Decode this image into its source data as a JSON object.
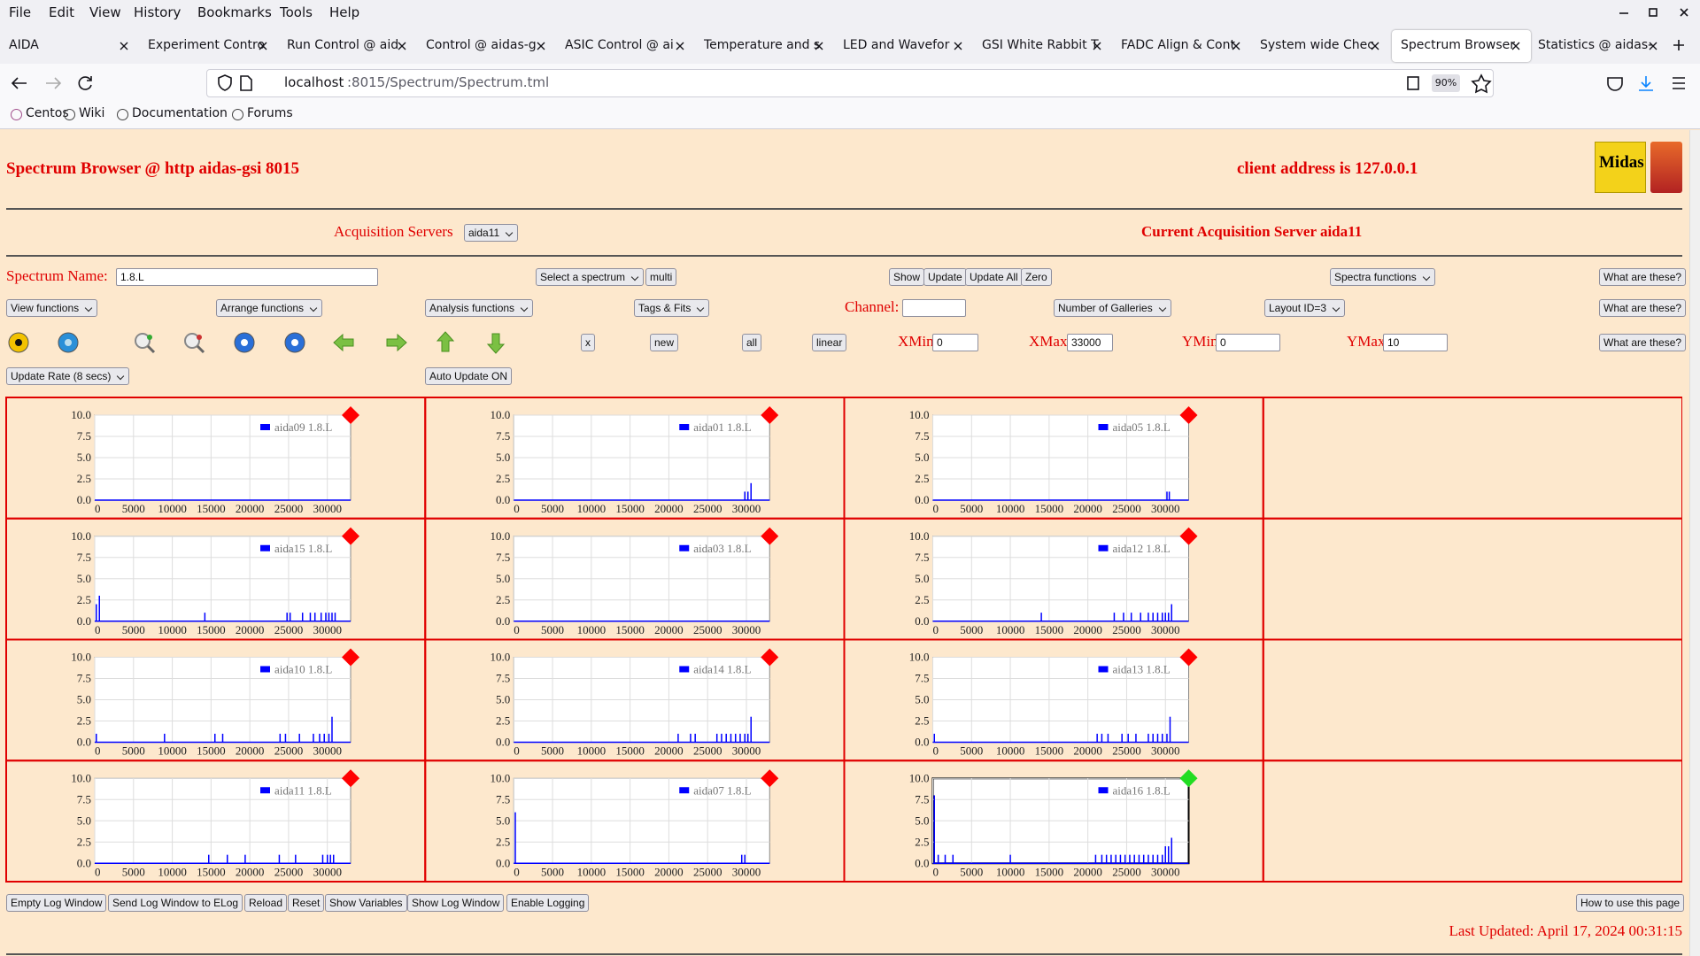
{
  "browser": {
    "menu": [
      "File",
      "Edit",
      "View",
      "History",
      "Bookmarks",
      "Tools",
      "Help"
    ],
    "tabs": [
      "AIDA",
      "Experiment Contro",
      "Run Control @ aid",
      "Control @ aidas-g",
      "ASIC Control @ ai",
      "Temperature and s",
      "LED and Wavefor",
      "GSI White Rabbit T",
      "FADC Align & Cont",
      "System wide Chec",
      "Spectrum Browser",
      "Statistics @ aidas-"
    ],
    "active_tab": 10,
    "url_host": "localhost",
    "url_rest": ":8015/Spectrum/Spectrum.tml",
    "zoom": "90%",
    "bookmarks": [
      "Centos",
      "Wiki",
      "Documentation",
      "Forums"
    ]
  },
  "page": {
    "title": "Spectrum Browser @ http aidas-gsi 8015",
    "client_address": "client address is 127.0.0.1",
    "logo_text": "Midas",
    "acquisition_label": "Acquisition Servers",
    "acquisition_server": "aida11",
    "current_server": "Current Acquisition Server aida11",
    "rows": [
      [
        {
          "text": "Spectrum Name:",
          "kind": "label"
        },
        {
          "text": "1.8.L",
          "kind": "input"
        },
        {
          "text": "Select a spectrum",
          "kind": "select"
        },
        {
          "text": "multi",
          "kind": "button"
        },
        {
          "text": "Show",
          "kind": "button"
        },
        {
          "text": "Update",
          "kind": "button"
        },
        {
          "text": "Update All",
          "kind": "button"
        },
        {
          "text": "Zero",
          "kind": "button"
        },
        {
          "text": "Spectra functions",
          "kind": "select"
        },
        {
          "text": "What are these?",
          "kind": "button"
        }
      ],
      [
        {
          "text": "View functions",
          "kind": "select"
        },
        {
          "text": "Arrange functions",
          "kind": "select"
        },
        {
          "text": "Analysis functions",
          "kind": "select"
        },
        {
          "text": "Tags & Fits",
          "kind": "select"
        },
        {
          "text": "Channel:",
          "kind": "label"
        },
        {
          "text": "Number of Galleries",
          "kind": "select"
        },
        {
          "text": "Layout ID=3",
          "kind": "select"
        },
        {
          "text": "What are these?",
          "kind": "button"
        }
      ],
      [
        {
          "text": "x",
          "kind": "button"
        },
        {
          "text": "new",
          "kind": "button"
        },
        {
          "text": "all",
          "kind": "button"
        },
        {
          "text": "linear",
          "kind": "button"
        },
        {
          "text": "XMin",
          "kind": "label"
        },
        {
          "text": "0",
          "kind": "input"
        },
        {
          "text": "XMax",
          "kind": "label"
        },
        {
          "text": "33000",
          "kind": "input"
        },
        {
          "text": "YMin",
          "kind": "label"
        },
        {
          "text": "0",
          "kind": "input"
        },
        {
          "text": "YMax",
          "kind": "label"
        },
        {
          "text": "10",
          "kind": "input"
        },
        {
          "text": "What are these?",
          "kind": "button"
        }
      ],
      [
        {
          "text": "Update Rate (8 secs)",
          "kind": "select"
        },
        {
          "text": "Auto Update ON",
          "kind": "button"
        }
      ]
    ],
    "footer_buttons": [
      "Empty Log Window",
      "Send Log Window to ELog",
      "Reload",
      "Reset",
      "Show Variables",
      "Show Log Window",
      "Enable Logging",
      "How to use this page"
    ],
    "last_updated": "Last Updated: April 17, 2024 00:31:15"
  },
  "chart_data": [
    {
      "type": "bar",
      "status_color": "#ff0000",
      "selected": false,
      "x": [],
      "series": [
        {
          "name": "aida09 1.8.L",
          "color": "#0000ff",
          "values": []
        }
      ],
      "xlim": [
        0,
        33000
      ],
      "ylim": [
        0,
        10
      ],
      "xticks": [
        0,
        5000,
        10000,
        15000,
        20000,
        25000,
        30000
      ],
      "yticks": [
        {
          "value": 0,
          "label": "0.0"
        },
        2.5,
        {
          "value": 5,
          "label": "5.0"
        },
        7.5,
        {
          "value": 10,
          "label": "10.0"
        }
      ],
      "grid": true
    },
    {
      "type": "bar",
      "status_color": "#ff0000",
      "selected": false,
      "x": [
        29800,
        30200,
        30600
      ],
      "series": [
        {
          "name": "aida01 1.8.L",
          "color": "#0000ff",
          "values": [
            1,
            1,
            2
          ]
        }
      ],
      "xlim": [
        0,
        33000
      ],
      "ylim": [
        0,
        10
      ],
      "xticks": [
        0,
        5000,
        10000,
        15000,
        20000,
        25000,
        30000
      ],
      "yticks": [
        {
          "value": 0,
          "label": "0.0"
        },
        2.5,
        {
          "value": 5,
          "label": "5.0"
        },
        7.5,
        {
          "value": 10,
          "label": "10.0"
        }
      ],
      "grid": true
    },
    {
      "type": "bar",
      "status_color": "#ff0000",
      "selected": false,
      "x": [
        30200,
        30500
      ],
      "series": [
        {
          "name": "aida05 1.8.L",
          "color": "#0000ff",
          "values": [
            1,
            1
          ]
        }
      ],
      "xlim": [
        0,
        33000
      ],
      "ylim": [
        0,
        10
      ],
      "xticks": [
        0,
        5000,
        10000,
        15000,
        20000,
        25000,
        30000
      ],
      "yticks": [
        {
          "value": 0,
          "label": "0.0"
        },
        2.5,
        {
          "value": 5,
          "label": "5.0"
        },
        7.5,
        {
          "value": 10,
          "label": "10.0"
        }
      ],
      "grid": true
    },
    {
      "type": "bar",
      "status_color": "#ff0000",
      "selected": false,
      "x": [
        200,
        600,
        14200,
        24800,
        25200,
        26800,
        27800,
        28400,
        29200,
        29800,
        30200,
        30600,
        31000
      ],
      "series": [
        {
          "name": "aida15 1.8.L",
          "color": "#0000ff",
          "values": [
            2,
            3,
            1,
            1,
            1,
            1,
            1,
            1,
            1,
            1,
            1,
            1,
            1
          ]
        }
      ],
      "xlim": [
        0,
        33000
      ],
      "ylim": [
        0,
        10
      ],
      "xticks": [
        0,
        5000,
        10000,
        15000,
        20000,
        25000,
        30000
      ],
      "yticks": [
        {
          "value": 0,
          "label": "0.0"
        },
        2.5,
        {
          "value": 5,
          "label": "5.0"
        },
        7.5,
        {
          "value": 10,
          "label": "10.0"
        }
      ],
      "grid": true
    },
    {
      "type": "bar",
      "status_color": "#ff0000",
      "selected": false,
      "x": [],
      "series": [
        {
          "name": "aida03 1.8.L",
          "color": "#0000ff",
          "values": []
        }
      ],
      "xlim": [
        0,
        33000
      ],
      "ylim": [
        0,
        10
      ],
      "xticks": [
        0,
        5000,
        10000,
        15000,
        20000,
        25000,
        30000
      ],
      "yticks": [
        {
          "value": 0,
          "label": "0.0"
        },
        2.5,
        {
          "value": 5,
          "label": "5.0"
        },
        7.5,
        {
          "value": 10,
          "label": "10.0"
        }
      ],
      "grid": true
    },
    {
      "type": "bar",
      "status_color": "#ff0000",
      "selected": false,
      "x": [
        14000,
        23400,
        24600,
        25600,
        26800,
        27800,
        28400,
        29000,
        29600,
        30000,
        30400,
        30800
      ],
      "series": [
        {
          "name": "aida12 1.8.L",
          "color": "#0000ff",
          "values": [
            1,
            1,
            1,
            1,
            1,
            1,
            1,
            1,
            1,
            1,
            1,
            2
          ]
        }
      ],
      "xlim": [
        0,
        33000
      ],
      "ylim": [
        0,
        10
      ],
      "xticks": [
        0,
        5000,
        10000,
        15000,
        20000,
        25000,
        30000
      ],
      "yticks": [
        {
          "value": 0,
          "label": "0.0"
        },
        2.5,
        {
          "value": 5,
          "label": "5.0"
        },
        7.5,
        {
          "value": 10,
          "label": "10.0"
        }
      ],
      "grid": true
    },
    {
      "type": "bar",
      "status_color": "#ff0000",
      "selected": false,
      "x": [
        200,
        9000,
        15500,
        16500,
        23900,
        24600,
        26400,
        28200,
        29000,
        29600,
        30200,
        30600
      ],
      "series": [
        {
          "name": "aida10 1.8.L",
          "color": "#0000ff",
          "values": [
            1,
            1,
            1,
            1,
            1,
            1,
            1,
            1,
            1,
            1,
            1,
            3
          ]
        }
      ],
      "xlim": [
        0,
        33000
      ],
      "ylim": [
        0,
        10
      ],
      "xticks": [
        0,
        5000,
        10000,
        15000,
        20000,
        25000,
        30000
      ],
      "yticks": [
        {
          "value": 0,
          "label": "0.0"
        },
        2.5,
        {
          "value": 5,
          "label": "5.0"
        },
        7.5,
        {
          "value": 10,
          "label": "10.0"
        }
      ],
      "grid": true
    },
    {
      "type": "bar",
      "status_color": "#ff0000",
      "selected": false,
      "x": [
        21200,
        22800,
        23400,
        26200,
        26800,
        27400,
        28000,
        28600,
        29200,
        29800,
        30200,
        30600
      ],
      "series": [
        {
          "name": "aida14 1.8.L",
          "color": "#0000ff",
          "values": [
            1,
            1,
            1,
            1,
            1,
            1,
            1,
            1,
            1,
            1,
            1,
            3
          ]
        }
      ],
      "xlim": [
        0,
        33000
      ],
      "ylim": [
        0,
        10
      ],
      "xticks": [
        0,
        5000,
        10000,
        15000,
        20000,
        25000,
        30000
      ],
      "yticks": [
        {
          "value": 0,
          "label": "0.0"
        },
        2.5,
        {
          "value": 5,
          "label": "5.0"
        },
        7.5,
        {
          "value": 10,
          "label": "10.0"
        }
      ],
      "grid": true
    },
    {
      "type": "bar",
      "status_color": "#ff0000",
      "selected": false,
      "x": [
        200,
        21200,
        21800,
        22600,
        24400,
        25200,
        26200,
        27800,
        28400,
        29000,
        29600,
        30200,
        30600
      ],
      "series": [
        {
          "name": "aida13 1.8.L",
          "color": "#0000ff",
          "values": [
            1,
            1,
            1,
            1,
            1,
            1,
            1,
            1,
            1,
            1,
            1,
            1,
            3
          ]
        }
      ],
      "xlim": [
        0,
        33000
      ],
      "ylim": [
        0,
        10
      ],
      "xticks": [
        0,
        5000,
        10000,
        15000,
        20000,
        25000,
        30000
      ],
      "yticks": [
        {
          "value": 0,
          "label": "0.0"
        },
        2.5,
        {
          "value": 5,
          "label": "5.0"
        },
        7.5,
        {
          "value": 10,
          "label": "10.0"
        }
      ],
      "grid": true
    },
    {
      "type": "bar",
      "status_color": "#ff0000",
      "selected": false,
      "x": [
        14700,
        17100,
        19400,
        23800,
        25900,
        29400,
        30000,
        30400,
        30800
      ],
      "series": [
        {
          "name": "aida11 1.8.L",
          "color": "#0000ff",
          "values": [
            1,
            1,
            1,
            1,
            1,
            1,
            1,
            1,
            1
          ]
        }
      ],
      "xlim": [
        0,
        33000
      ],
      "ylim": [
        0,
        10
      ],
      "xticks": [
        0,
        5000,
        10000,
        15000,
        20000,
        25000,
        30000
      ],
      "yticks": [
        {
          "value": 0,
          "label": "0.0"
        },
        2.5,
        {
          "value": 5,
          "label": "5.0"
        },
        7.5,
        {
          "value": 10,
          "label": "10.0"
        }
      ],
      "grid": true
    },
    {
      "type": "bar",
      "status_color": "#ff0000",
      "selected": false,
      "x": [
        200,
        29400,
        29800
      ],
      "series": [
        {
          "name": "aida07 1.8.L",
          "color": "#0000ff",
          "values": [
            6,
            1,
            1
          ]
        }
      ],
      "xlim": [
        0,
        33000
      ],
      "ylim": [
        0,
        10
      ],
      "xticks": [
        0,
        5000,
        10000,
        15000,
        20000,
        25000,
        30000
      ],
      "yticks": [
        {
          "value": 0,
          "label": "0.0"
        },
        2.5,
        {
          "value": 5,
          "label": "5.0"
        },
        7.5,
        {
          "value": 10,
          "label": "10.0"
        }
      ],
      "grid": true
    },
    {
      "type": "bar",
      "status_color": "#22dd22",
      "selected": true,
      "x": [
        200,
        700,
        1600,
        2600,
        10000,
        21000,
        21800,
        22400,
        23000,
        23600,
        24200,
        24800,
        25400,
        26000,
        26600,
        27200,
        27800,
        28400,
        29000,
        29600,
        30000,
        30400,
        30800
      ],
      "series": [
        {
          "name": "aida16 1.8.L",
          "color": "#0000ff",
          "values": [
            8,
            1,
            1,
            1,
            1,
            1,
            1,
            1,
            1,
            1,
            1,
            1,
            1,
            1,
            1,
            1,
            1,
            1,
            1,
            1,
            2,
            2,
            3
          ]
        }
      ],
      "xlim": [
        0,
        33000
      ],
      "ylim": [
        0,
        10
      ],
      "xticks": [
        0,
        5000,
        10000,
        15000,
        20000,
        25000,
        30000
      ],
      "yticks": [
        {
          "value": 0,
          "label": "0.0"
        },
        2.5,
        {
          "value": 5,
          "label": "5.0"
        },
        7.5,
        {
          "value": 10,
          "label": "10.0"
        }
      ],
      "grid": true
    }
  ]
}
